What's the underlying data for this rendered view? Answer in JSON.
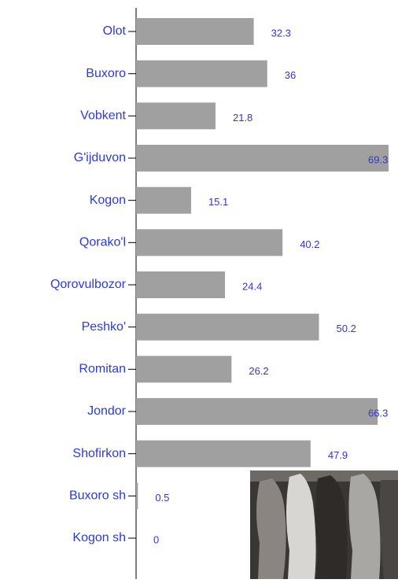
{
  "chart_data": {
    "type": "bar",
    "orientation": "horizontal",
    "categories": [
      "Olot",
      "Buxoro",
      "Vobkent",
      "G'ijduvon",
      "Kogon",
      "Qorako'l",
      "Qorovulbozor",
      "Peshko'",
      "Romitan",
      "Jondor",
      "Shofirkon",
      "Buxoro sh",
      "Kogon sh"
    ],
    "values": [
      32.3,
      36,
      21.8,
      69.3,
      15.1,
      40.2,
      24.4,
      50.2,
      26.2,
      66.3,
      47.9,
      0.5,
      0
    ],
    "color": "#a0a0a0",
    "label_color": "#2b3bd4",
    "value_label_color": "#3535c8"
  }
}
